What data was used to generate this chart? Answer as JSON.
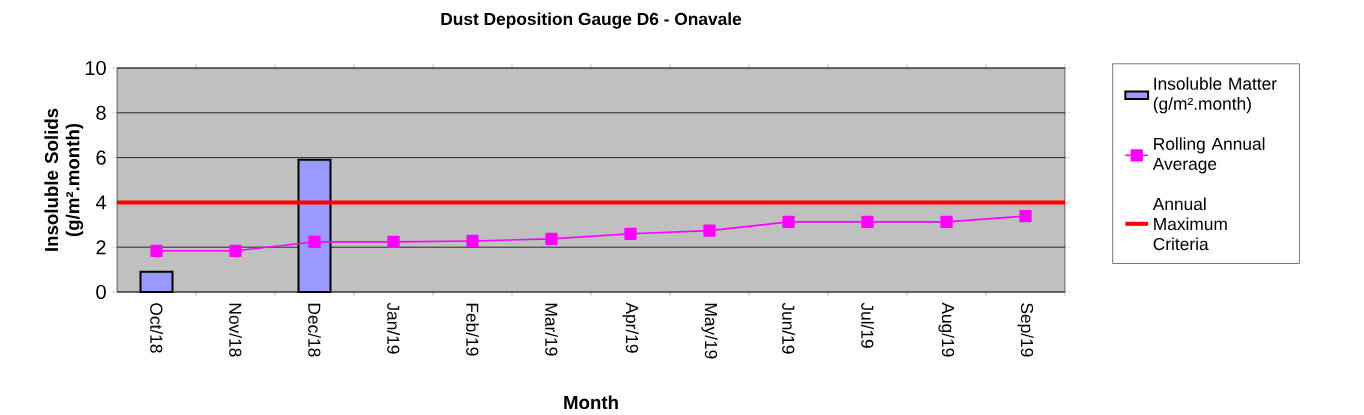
{
  "chart_data": {
    "type": "bar",
    "title": "Dust Deposition Gauge D6 - Onavale",
    "xlabel": "Month",
    "ylabel": "Insoluble Solids (g/m².month)",
    "categories": [
      "Oct/18",
      "Nov/18",
      "Dec/18",
      "Jan/19",
      "Feb/19",
      "Mar/19",
      "Apr/19",
      "May/19",
      "Jun/19",
      "Jul/19",
      "Aug/19",
      "Sep/19"
    ],
    "series": [
      {
        "name": "Insoluble Matter (g/m².month)",
        "color": "#9999ff",
        "values": [
          0.9,
          null,
          5.9,
          null,
          null,
          null,
          null,
          null,
          null,
          null,
          null,
          null
        ]
      },
      {
        "name": "Rolling Annual Average",
        "type": "line",
        "color": "#ff00ff",
        "marker": "square",
        "values": [
          1.84,
          1.84,
          2.24,
          2.24,
          2.28,
          2.37,
          2.6,
          2.74,
          3.13,
          3.13,
          3.13,
          3.39
        ]
      }
    ],
    "ref_lines": [
      {
        "axis": "y",
        "value": 4,
        "label": "Annual Maximum Criteria",
        "color": "#ff0000"
      }
    ],
    "ylim": [
      0,
      10
    ],
    "yticks": [
      0,
      2,
      4,
      6,
      8,
      10
    ],
    "grid": "y",
    "legend": "right"
  }
}
